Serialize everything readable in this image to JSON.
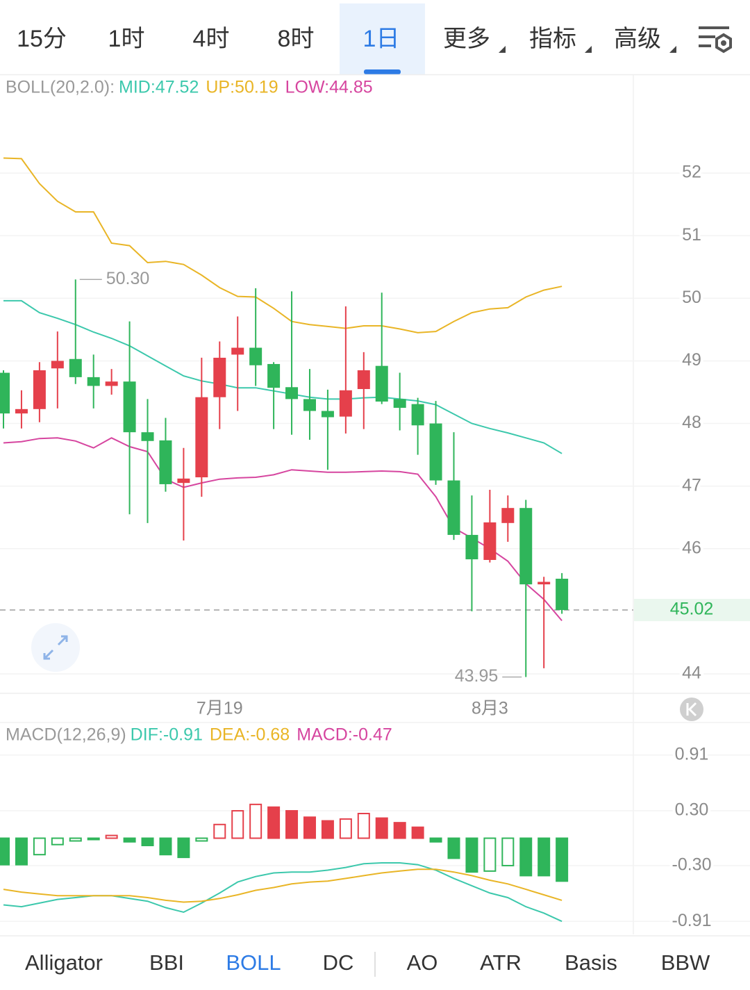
{
  "tabs": {
    "items": [
      "15分",
      "1时",
      "4时",
      "8时",
      "1日",
      "更多",
      "指标",
      "高级"
    ],
    "selected": 4
  },
  "chart_data": [
    {
      "type": "candlestick",
      "legend_title": "BOLL(20,2.0):",
      "categories": [
        null,
        null,
        null,
        null,
        null,
        null,
        null,
        null,
        null,
        null,
        null,
        null,
        "7月19",
        null,
        null,
        null,
        null,
        null,
        null,
        null,
        null,
        null,
        null,
        null,
        null,
        null,
        null,
        "8月3",
        null,
        null,
        null,
        null
      ],
      "open": [
        48.81,
        48.16,
        48.23,
        48.88,
        49.03,
        48.74,
        48.6,
        48.67,
        47.86,
        47.73,
        47.05,
        47.14,
        48.42,
        49.1,
        49.21,
        48.95,
        48.58,
        48.39,
        48.2,
        48.11,
        48.55,
        48.92,
        48.39,
        48.31,
        48.0,
        47.09,
        46.22,
        45.82,
        46.41,
        46.65,
        45.43,
        45.52
      ],
      "high": [
        48.85,
        48.53,
        48.98,
        49.47,
        50.3,
        49.1,
        48.87,
        49.63,
        48.39,
        48.09,
        47.61,
        49.05,
        49.31,
        49.71,
        50.16,
        48.98,
        50.11,
        48.87,
        48.54,
        49.87,
        49.14,
        50.09,
        48.81,
        48.41,
        48.36,
        47.86,
        46.85,
        46.94,
        46.85,
        46.78,
        45.55,
        45.61
      ],
      "low": [
        47.92,
        47.92,
        48.02,
        48.24,
        48.63,
        48.24,
        48.46,
        46.55,
        46.41,
        46.91,
        46.13,
        46.83,
        47.91,
        48.2,
        48.6,
        47.91,
        47.82,
        47.74,
        47.26,
        47.84,
        47.91,
        48.31,
        47.89,
        47.5,
        47.02,
        46.14,
        45.0,
        45.78,
        46.11,
        43.95,
        44.09,
        44.96
      ],
      "close": [
        48.16,
        48.23,
        48.85,
        49.0,
        48.74,
        48.6,
        48.67,
        47.86,
        47.72,
        47.03,
        47.12,
        48.42,
        49.05,
        49.21,
        48.93,
        48.57,
        48.39,
        48.2,
        48.1,
        48.53,
        48.85,
        48.35,
        48.25,
        47.97,
        47.09,
        46.22,
        45.83,
        46.42,
        46.65,
        45.43,
        45.47,
        45.02
      ],
      "up_color": "#e5404b",
      "down_color": "#2fb55a",
      "legend_title_color": "#999999",
      "series": [
        {
          "name": "MID:47.52",
          "color": "#3cc8ac",
          "values": [
            49.96,
            49.96,
            49.77,
            49.68,
            49.58,
            49.46,
            49.36,
            49.24,
            49.08,
            48.92,
            48.76,
            48.68,
            48.63,
            48.57,
            48.57,
            48.52,
            48.47,
            48.42,
            48.39,
            48.39,
            48.41,
            48.42,
            48.39,
            48.36,
            48.3,
            48.15,
            48.0,
            47.92,
            47.85,
            47.77,
            47.69,
            47.52
          ]
        },
        {
          "name": "UP:50.19",
          "color": "#e9b526",
          "values": [
            52.24,
            52.23,
            51.83,
            51.55,
            51.38,
            51.38,
            50.88,
            50.84,
            50.57,
            50.59,
            50.54,
            50.37,
            50.17,
            50.03,
            50.02,
            49.84,
            49.63,
            49.58,
            49.55,
            49.52,
            49.56,
            49.56,
            49.51,
            49.45,
            49.47,
            49.63,
            49.77,
            49.83,
            49.85,
            50.02,
            50.13,
            50.19
          ]
        },
        {
          "name": "LOW:44.85",
          "color": "#d6459f",
          "values": [
            47.69,
            47.71,
            47.76,
            47.77,
            47.72,
            47.61,
            47.77,
            47.63,
            47.55,
            47.11,
            46.98,
            47.05,
            47.11,
            47.13,
            47.14,
            47.18,
            47.26,
            47.24,
            47.22,
            47.22,
            47.23,
            47.24,
            47.23,
            47.19,
            46.83,
            46.33,
            46.17,
            46.0,
            45.8,
            45.44,
            45.19,
            44.85
          ]
        }
      ],
      "ylim": [
        43.7,
        53.2
      ],
      "yticks": [
        44,
        46,
        47,
        48,
        49,
        50,
        51,
        52
      ],
      "grid": true,
      "annotations": [
        {
          "index": 4,
          "value": 50.3,
          "label": "50.30"
        },
        {
          "index": 29,
          "value": 43.95,
          "label": "43.95"
        }
      ],
      "last_price": {
        "value": 45.02,
        "label": "45.02"
      }
    },
    {
      "type": "macd",
      "legend_title": "MACD(12,26,9)",
      "legend_title_color": "#999999",
      "series": [
        {
          "name": "DIF:-0.91",
          "type": "line",
          "color": "#3cc8ac",
          "values": [
            -0.73,
            -0.75,
            -0.71,
            -0.67,
            -0.65,
            -0.63,
            -0.63,
            -0.66,
            -0.69,
            -0.76,
            -0.81,
            -0.71,
            -0.6,
            -0.48,
            -0.42,
            -0.38,
            -0.37,
            -0.37,
            -0.35,
            -0.32,
            -0.28,
            -0.27,
            -0.27,
            -0.29,
            -0.35,
            -0.44,
            -0.52,
            -0.6,
            -0.65,
            -0.75,
            -0.82,
            -0.91
          ]
        },
        {
          "name": "DEA:-0.68",
          "type": "line",
          "color": "#e9b526",
          "values": [
            -0.56,
            -0.59,
            -0.61,
            -0.63,
            -0.63,
            -0.63,
            -0.63,
            -0.63,
            -0.65,
            -0.68,
            -0.7,
            -0.69,
            -0.66,
            -0.62,
            -0.57,
            -0.54,
            -0.5,
            -0.48,
            -0.47,
            -0.44,
            -0.41,
            -0.38,
            -0.36,
            -0.34,
            -0.34,
            -0.37,
            -0.41,
            -0.46,
            -0.5,
            -0.56,
            -0.62,
            -0.68
          ]
        },
        {
          "name": "MACD:-0.47",
          "type": "bar",
          "color": "#d6459f",
          "up_color": "#e5404b",
          "down_color": "#2fb55a",
          "values": [
            -0.29,
            -0.29,
            -0.18,
            -0.07,
            -0.03,
            -0.01,
            0.03,
            -0.04,
            -0.08,
            -0.18,
            -0.21,
            -0.03,
            0.15,
            0.3,
            0.37,
            0.34,
            0.3,
            0.23,
            0.19,
            0.21,
            0.27,
            0.22,
            0.17,
            0.12,
            -0.04,
            -0.22,
            -0.37,
            -0.36,
            -0.3,
            -0.41,
            -0.41,
            -0.47
          ]
        }
      ],
      "ylim": [
        -1.0,
        1.0
      ],
      "yticks": [
        -0.91,
        {
          "value": -0.3,
          "label": "-0.30"
        },
        {
          "value": 0.3,
          "label": "0.30"
        },
        0.91
      ],
      "grid": true
    }
  ],
  "indicator_tabs": {
    "items": [
      "Alligator",
      "BBI",
      "BOLL",
      "DC",
      "AO",
      "ATR",
      "Basis",
      "BBW"
    ],
    "selected": 2
  }
}
